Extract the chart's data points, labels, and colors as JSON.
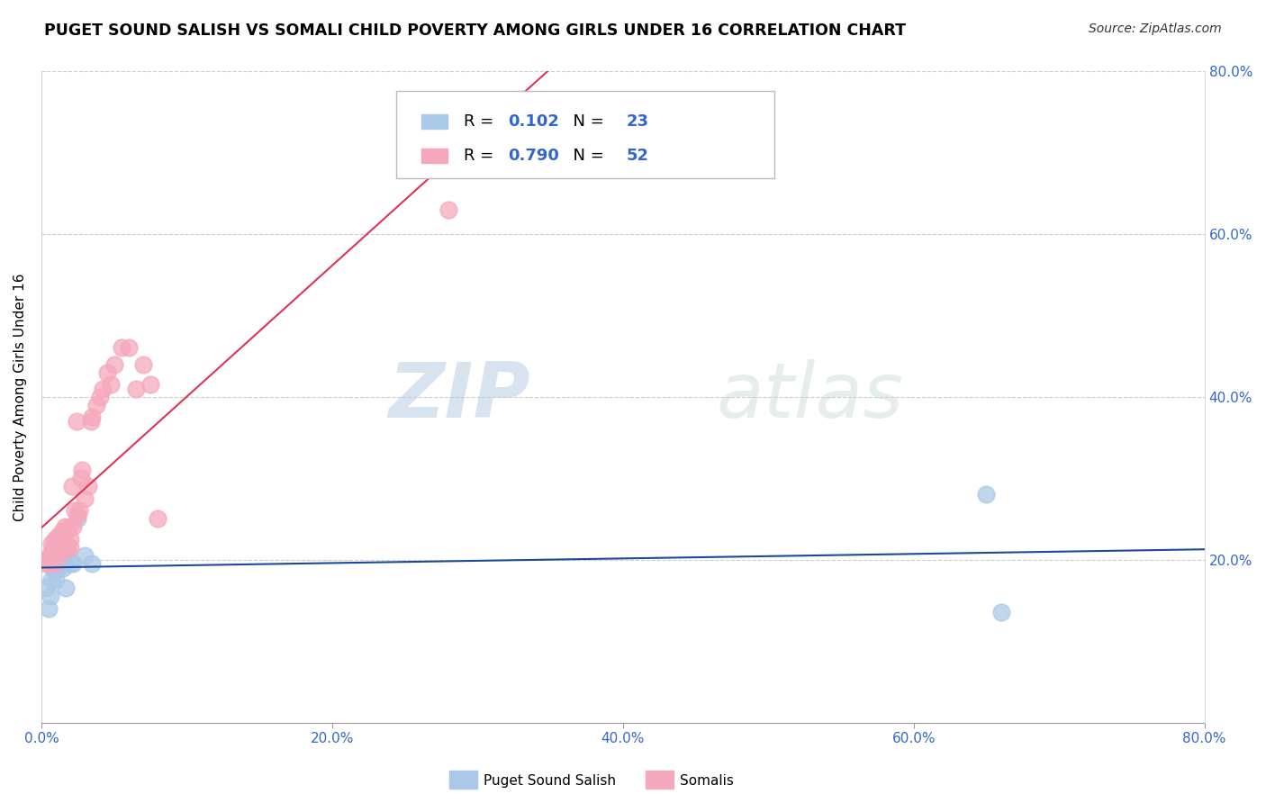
{
  "title": "PUGET SOUND SALISH VS SOMALI CHILD POVERTY AMONG GIRLS UNDER 16 CORRELATION CHART",
  "source": "Source: ZipAtlas.com",
  "ylabel": "Child Poverty Among Girls Under 16",
  "xlim": [
    0,
    0.8
  ],
  "ylim": [
    0,
    0.8
  ],
  "xtick_vals": [
    0.0,
    0.2,
    0.4,
    0.6,
    0.8
  ],
  "xtick_labels": [
    "0.0%",
    "20.0%",
    "40.0%",
    "60.0%",
    "80.0%"
  ],
  "ytick_vals": [
    0.2,
    0.4,
    0.6,
    0.8
  ],
  "ytick_labels": [
    "20.0%",
    "40.0%",
    "60.0%",
    "80.0%"
  ],
  "blue_R": "0.102",
  "blue_N": "23",
  "pink_R": "0.790",
  "pink_N": "52",
  "blue_color": "#aac9e8",
  "pink_color": "#f5a8bb",
  "blue_line_color": "#1a4a99",
  "pink_line_color": "#e03355",
  "legend_label_blue": "Puget Sound Salish",
  "legend_label_pink": "Somalis",
  "watermark_zip": "ZIP",
  "watermark_atlas": "atlas",
  "blue_points_x": [
    0.003,
    0.005,
    0.006,
    0.007,
    0.008,
    0.009,
    0.01,
    0.01,
    0.011,
    0.012,
    0.013,
    0.014,
    0.015,
    0.016,
    0.017,
    0.018,
    0.02,
    0.022,
    0.025,
    0.03,
    0.035,
    0.65,
    0.66
  ],
  "blue_points_y": [
    0.165,
    0.14,
    0.155,
    0.175,
    0.19,
    0.185,
    0.215,
    0.175,
    0.2,
    0.19,
    0.21,
    0.205,
    0.19,
    0.195,
    0.165,
    0.21,
    0.195,
    0.195,
    0.25,
    0.205,
    0.195,
    0.28,
    0.135
  ],
  "pink_points_x": [
    0.003,
    0.004,
    0.005,
    0.006,
    0.007,
    0.007,
    0.008,
    0.009,
    0.01,
    0.01,
    0.011,
    0.011,
    0.012,
    0.012,
    0.013,
    0.014,
    0.014,
    0.015,
    0.015,
    0.016,
    0.016,
    0.017,
    0.018,
    0.019,
    0.02,
    0.02,
    0.021,
    0.022,
    0.023,
    0.024,
    0.025,
    0.026,
    0.027,
    0.028,
    0.03,
    0.032,
    0.034,
    0.035,
    0.038,
    0.04,
    0.042,
    0.045,
    0.048,
    0.05,
    0.055,
    0.06,
    0.065,
    0.07,
    0.075,
    0.08,
    0.28,
    0.36
  ],
  "pink_points_y": [
    0.195,
    0.2,
    0.195,
    0.205,
    0.21,
    0.22,
    0.215,
    0.225,
    0.215,
    0.195,
    0.225,
    0.215,
    0.22,
    0.23,
    0.215,
    0.225,
    0.235,
    0.21,
    0.23,
    0.24,
    0.225,
    0.235,
    0.215,
    0.24,
    0.215,
    0.225,
    0.29,
    0.24,
    0.26,
    0.37,
    0.255,
    0.26,
    0.3,
    0.31,
    0.275,
    0.29,
    0.37,
    0.375,
    0.39,
    0.4,
    0.41,
    0.43,
    0.415,
    0.44,
    0.46,
    0.46,
    0.41,
    0.44,
    0.415,
    0.25,
    0.63,
    0.75
  ]
}
